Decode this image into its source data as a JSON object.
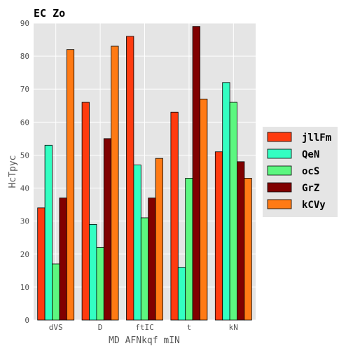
{
  "chart_data": {
    "type": "bar",
    "title": "EC Zo",
    "xlabel": "MD AFNkqf mIN",
    "ylabel": "HcTpyc",
    "categories": [
      "dVS",
      "D",
      "ftIC",
      "t",
      "kN"
    ],
    "ylim": [
      0,
      90
    ],
    "yticks": [
      0,
      10,
      20,
      30,
      40,
      50,
      60,
      70,
      80,
      90
    ],
    "grid": true,
    "legend_position": "right",
    "series": [
      {
        "name": "jllFm",
        "color": "#ff3b0f",
        "values": [
          34,
          66,
          86,
          63,
          51
        ]
      },
      {
        "name": "QeN",
        "color": "#33ffc2",
        "values": [
          53,
          29,
          47,
          16,
          72
        ]
      },
      {
        "name": "ocS",
        "color": "#5cf780",
        "values": [
          17,
          22,
          31,
          43,
          66
        ]
      },
      {
        "name": "GrZ",
        "color": "#800000",
        "values": [
          37,
          55,
          37,
          89,
          48
        ]
      },
      {
        "name": "kCVy",
        "color": "#ff7a14",
        "values": [
          82,
          83,
          49,
          67,
          43
        ]
      }
    ]
  }
}
